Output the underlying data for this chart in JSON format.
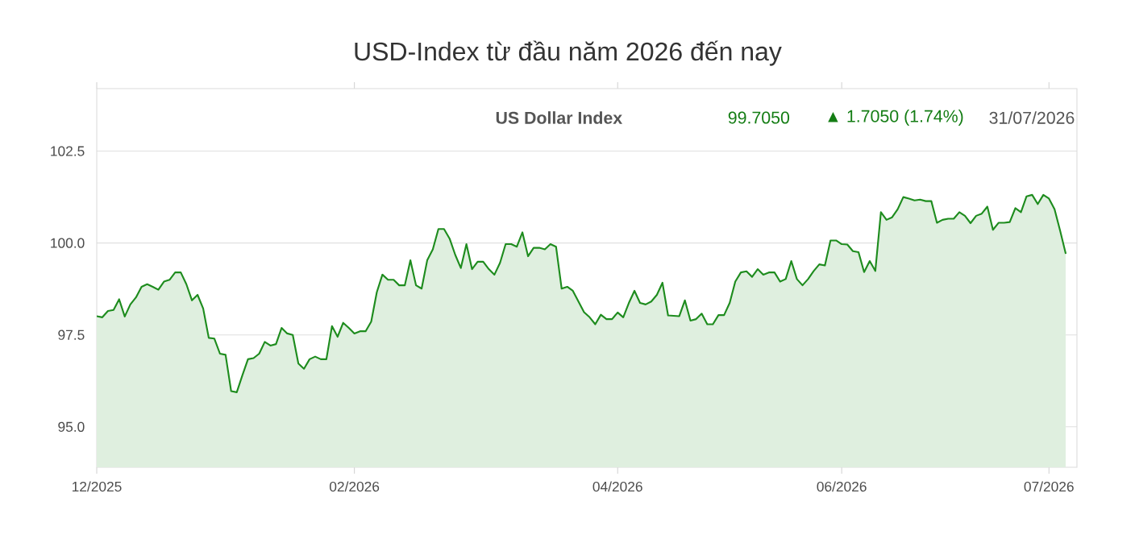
{
  "chart_data": {
    "type": "area",
    "title": "USD-Index từ đầu năm 2026 đến nay",
    "annotations": [
      "99.7050",
      "US Dollar Index",
      "▲ 1.7050 (1.74%)",
      "31/07/2026"
    ],
    "categories": [
      "12/2025",
      null,
      null,
      null,
      null,
      null,
      null,
      null,
      null,
      null,
      null,
      null,
      null,
      null,
      null,
      null,
      null,
      null,
      null,
      null,
      null,
      null,
      null,
      null,
      null,
      null,
      null,
      null,
      null,
      null,
      null,
      null,
      null,
      null,
      null,
      null,
      null,
      null,
      null,
      null,
      null,
      null,
      null,
      null,
      null,
      null,
      "02/2026",
      null,
      null,
      null,
      null,
      null,
      null,
      null,
      null,
      null,
      null,
      null,
      null,
      null,
      null,
      null,
      null,
      null,
      null,
      null,
      null,
      null,
      null,
      null,
      null,
      null,
      null,
      null,
      null,
      null,
      null,
      null,
      null,
      null,
      null,
      null,
      null,
      null,
      null,
      null,
      null,
      null,
      null,
      null,
      null,
      null,
      null,
      "04/2026",
      null,
      null,
      null,
      null,
      null,
      null,
      null,
      null,
      null,
      null,
      null,
      null,
      null,
      null,
      null,
      null,
      null,
      null,
      null,
      null,
      null,
      null,
      null,
      null,
      null,
      null,
      null,
      null,
      null,
      null,
      null,
      null,
      null,
      null,
      null,
      null,
      null,
      null,
      null,
      "06/2026",
      null,
      null,
      null,
      null,
      null,
      null,
      null,
      null,
      null,
      null,
      null,
      null,
      null,
      null,
      null,
      null,
      null,
      null,
      null,
      null,
      null,
      null,
      null,
      null,
      null,
      null,
      null,
      null,
      null,
      null,
      null,
      null,
      null,
      null,
      null,
      null,
      "07/2026",
      null,
      null,
      null
    ],
    "series": [
      {
        "color": "#1e8c1e",
        "values": [
          98.01,
          97.98,
          98.15,
          98.18,
          98.47,
          98.0,
          98.33,
          98.52,
          98.81,
          98.88,
          98.81,
          98.73,
          98.95,
          99.0,
          99.2,
          99.2,
          98.88,
          98.44,
          98.59,
          98.22,
          97.42,
          97.4,
          96.99,
          96.96,
          95.97,
          95.94,
          96.4,
          96.84,
          96.87,
          96.99,
          97.31,
          97.21,
          97.25,
          97.69,
          97.54,
          97.5,
          96.72,
          96.58,
          96.84,
          96.91,
          96.84,
          96.84,
          97.74,
          97.45,
          97.83,
          97.69,
          97.54,
          97.6,
          97.6,
          97.86,
          98.66,
          99.14,
          99.0,
          99.0,
          98.85,
          98.85,
          99.53,
          98.85,
          98.76,
          99.53,
          99.83,
          100.38,
          100.38,
          100.12,
          99.68,
          99.32,
          99.97,
          99.29,
          99.49,
          99.49,
          99.29,
          99.14,
          99.46,
          99.97,
          99.97,
          99.9,
          100.29,
          99.64,
          99.87,
          99.87,
          99.83,
          99.97,
          99.9,
          98.76,
          98.81,
          98.7,
          98.41,
          98.12,
          97.98,
          97.79,
          98.05,
          97.93,
          97.93,
          98.11,
          97.98,
          98.37,
          98.7,
          98.37,
          98.33,
          98.41,
          98.59,
          98.92,
          98.03,
          98.02,
          98.01,
          98.44,
          97.89,
          97.93,
          98.08,
          97.79,
          97.79,
          98.04,
          98.04,
          98.37,
          98.95,
          99.2,
          99.23,
          99.08,
          99.29,
          99.14,
          99.2,
          99.2,
          98.95,
          99.02,
          99.51,
          99.02,
          98.85,
          99.02,
          99.24,
          99.42,
          99.39,
          100.07,
          100.07,
          99.97,
          99.96,
          99.78,
          99.75,
          99.21,
          99.51,
          99.24,
          100.84,
          100.63,
          100.7,
          100.92,
          101.25,
          101.21,
          101.16,
          101.18,
          101.14,
          101.14,
          100.55,
          100.63,
          100.66,
          100.66,
          100.84,
          100.74,
          100.54,
          100.74,
          100.8,
          100.99,
          100.36,
          100.55,
          100.55,
          100.57,
          100.95,
          100.84,
          101.27,
          101.31,
          101.06,
          101.31,
          101.21,
          100.92,
          100.33,
          99.71
        ]
      }
    ],
    "ylim": [
      93.9,
      104.2
    ],
    "yticks": [
      {
        "value": 95,
        "label": "95.0"
      },
      97.5,
      {
        "value": 100,
        "label": "100.0"
      },
      102.5
    ],
    "grid": "y"
  }
}
